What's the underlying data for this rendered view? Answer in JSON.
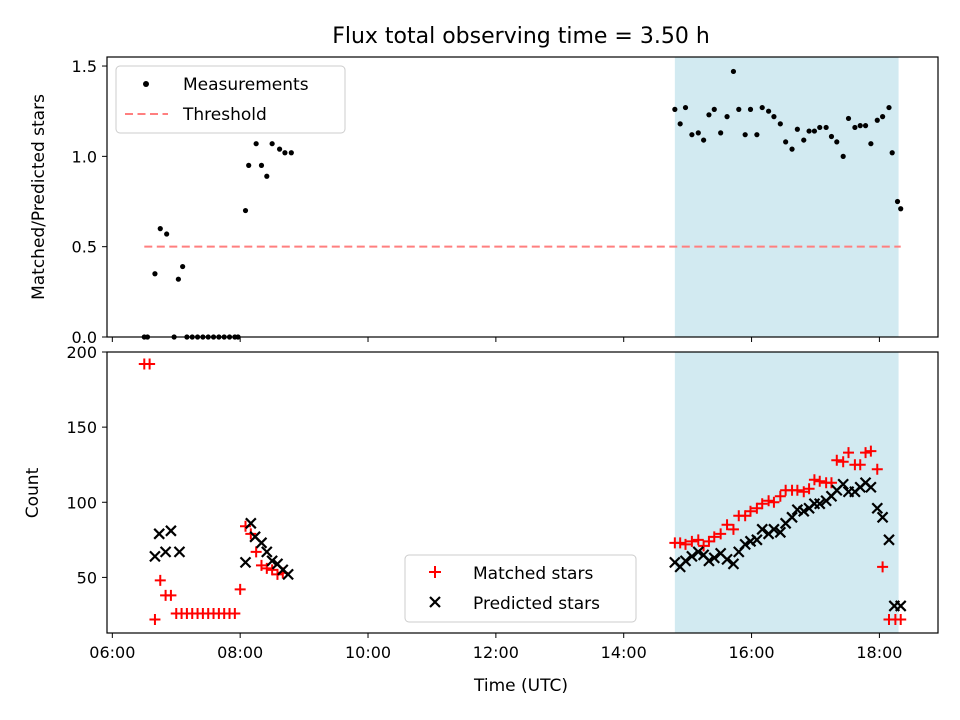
{
  "chart_data": [
    {
      "type": "scatter",
      "title": "Flux total observing time = 3.50 h",
      "xlabel": "",
      "ylabel": "Matched/Predicted stars",
      "ylim": [
        0,
        1.55
      ],
      "yticks": [
        "0.0",
        "0.5",
        "1.0",
        "1.5"
      ],
      "highlight_span": {
        "x": [
          "14:48",
          "18:18"
        ],
        "color": "#add8e6"
      },
      "legend": {
        "placement": "top-left"
      },
      "series": [
        {
          "name": "Measurements",
          "marker": "dot",
          "color": "#000000",
          "x": [
            "06:30",
            "06:33",
            "06:40",
            "06:45",
            "06:51",
            "06:58",
            "07:02",
            "07:06",
            "07:10",
            "07:15",
            "07:20",
            "07:25",
            "07:30",
            "07:35",
            "07:40",
            "07:45",
            "07:50",
            "07:55",
            "07:58",
            "08:05",
            "08:08",
            "08:15",
            "08:20",
            "08:25",
            "08:30",
            "08:37",
            "08:42",
            "08:48",
            "14:48",
            "14:53",
            "14:58",
            "15:04",
            "15:10",
            "15:15",
            "15:20",
            "15:25",
            "15:31",
            "15:37",
            "15:43",
            "15:48",
            "15:54",
            "15:59",
            "16:05",
            "16:10",
            "16:16",
            "16:21",
            "16:27",
            "16:32",
            "16:38",
            "16:43",
            "16:49",
            "16:54",
            "16:59",
            "17:04",
            "17:10",
            "17:15",
            "17:20",
            "17:26",
            "17:31",
            "17:37",
            "17:42",
            "17:47",
            "17:52",
            "17:58",
            "18:03",
            "18:09",
            "18:12",
            "18:17"
          ],
          "y": [
            0,
            0,
            0.35,
            0.6,
            0.57,
            0,
            0.32,
            0.39,
            0,
            0,
            0,
            0,
            0,
            0,
            0,
            0,
            0,
            0,
            0,
            0.7,
            0.95,
            1.07,
            0.95,
            0.89,
            1.07,
            1.04,
            1.02,
            1.02,
            1.26,
            1.18,
            1.27,
            1.12,
            1.13,
            1.09,
            1.23,
            1.26,
            1.13,
            1.22,
            1.47,
            1.26,
            1.12,
            1.26,
            1.12,
            1.27,
            1.25,
            1.22,
            1.18,
            1.08,
            1.04,
            1.15,
            1.09,
            1.14,
            1.14,
            1.16,
            1.16,
            1.11,
            1.08,
            1.0,
            1.21,
            1.16,
            1.17,
            1.17,
            1.07,
            1.2,
            1.22,
            1.27,
            1.02,
            0.75
          ]
        },
        {
          "name": "Threshold",
          "type": "line",
          "style": "dashed",
          "color": "#ff7f7f",
          "x": [
            "06:30",
            "18:20"
          ],
          "y": [
            0.5,
            0.5
          ]
        }
      ],
      "extra_points": {
        "x": [
          "18:20"
        ],
        "y": [
          0.71
        ]
      }
    },
    {
      "type": "scatter",
      "title": "",
      "xlabel": "Time (UTC)",
      "ylabel": "Count",
      "ylim": [
        13,
        200
      ],
      "xlim": [
        "05:55",
        "18:55"
      ],
      "xticks": [
        "06:00",
        "08:00",
        "10:00",
        "12:00",
        "14:00",
        "16:00",
        "18:00"
      ],
      "yticks": [
        "50",
        "100",
        "150",
        "200"
      ],
      "highlight_span": {
        "x": [
          "14:48",
          "18:18"
        ],
        "color": "#add8e6"
      },
      "legend": {
        "placement": "lower-center"
      },
      "series": [
        {
          "name": "Matched stars",
          "marker": "plus",
          "color": "#ff0000",
          "x": [
            "06:30",
            "06:35",
            "06:40",
            "06:45",
            "06:50",
            "06:55",
            "07:00",
            "07:05",
            "07:10",
            "07:15",
            "07:20",
            "07:25",
            "07:30",
            "07:35",
            "07:40",
            "07:45",
            "07:50",
            "07:55",
            "08:00",
            "08:05",
            "08:10",
            "08:15",
            "08:20",
            "08:25",
            "08:30",
            "08:35",
            "08:40",
            "14:48",
            "14:53",
            "14:58",
            "15:04",
            "15:10",
            "15:15",
            "15:20",
            "15:25",
            "15:31",
            "15:37",
            "15:43",
            "15:48",
            "15:54",
            "15:59",
            "16:05",
            "16:10",
            "16:16",
            "16:21",
            "16:27",
            "16:32",
            "16:38",
            "16:43",
            "16:49",
            "16:54",
            "16:59",
            "17:04",
            "17:10",
            "17:15",
            "17:20",
            "17:26",
            "17:31",
            "17:37",
            "17:42",
            "17:47",
            "17:52",
            "17:58",
            "18:03",
            "18:09",
            "18:15",
            "18:20"
          ],
          "y": [
            192,
            192,
            22,
            48,
            38,
            38,
            26,
            26,
            26,
            26,
            26,
            26,
            26,
            26,
            26,
            26,
            26,
            26,
            42,
            84,
            79,
            67,
            58,
            56,
            55,
            52,
            53,
            73,
            73,
            72,
            74,
            75,
            71,
            74,
            77,
            79,
            85,
            82,
            91,
            91,
            94,
            96,
            99,
            101,
            100,
            104,
            108,
            108,
            108,
            107,
            109,
            115,
            114,
            113,
            113,
            128,
            127,
            133,
            125,
            125,
            133,
            134,
            122,
            57,
            22,
            22,
            22
          ],
          "note": "approximate readings"
        },
        {
          "name": "Predicted stars",
          "marker": "x",
          "color": "#000000",
          "x": [
            "06:40",
            "06:44",
            "06:50",
            "06:55",
            "07:03",
            "08:05",
            "08:10",
            "08:14",
            "08:20",
            "08:25",
            "08:30",
            "08:35",
            "08:40",
            "08:45",
            "14:48",
            "14:53",
            "14:58",
            "15:04",
            "15:10",
            "15:15",
            "15:20",
            "15:25",
            "15:31",
            "15:37",
            "15:43",
            "15:48",
            "15:54",
            "15:59",
            "16:05",
            "16:10",
            "16:16",
            "16:21",
            "16:27",
            "16:32",
            "16:38",
            "16:43",
            "16:49",
            "16:54",
            "16:59",
            "17:04",
            "17:10",
            "17:15",
            "17:20",
            "17:26",
            "17:31",
            "17:37",
            "17:42",
            "17:47",
            "17:52",
            "17:58",
            "18:03",
            "18:09",
            "18:14",
            "18:20"
          ],
          "y": [
            64,
            79,
            67,
            81,
            67,
            60,
            86,
            77,
            73,
            67,
            61,
            59,
            55,
            52,
            60,
            57,
            61,
            64,
            67,
            65,
            61,
            63,
            66,
            62,
            59,
            67,
            72,
            74,
            75,
            82,
            79,
            82,
            80,
            86,
            90,
            95,
            94,
            96,
            99,
            99,
            101,
            104,
            108,
            112,
            107,
            107,
            110,
            113,
            110,
            96,
            90,
            75,
            31,
            31
          ]
        }
      ]
    }
  ],
  "legend_labels": {
    "top": [
      "Measurements",
      "Threshold"
    ],
    "bottom": [
      "Matched stars",
      "Predicted stars"
    ]
  }
}
